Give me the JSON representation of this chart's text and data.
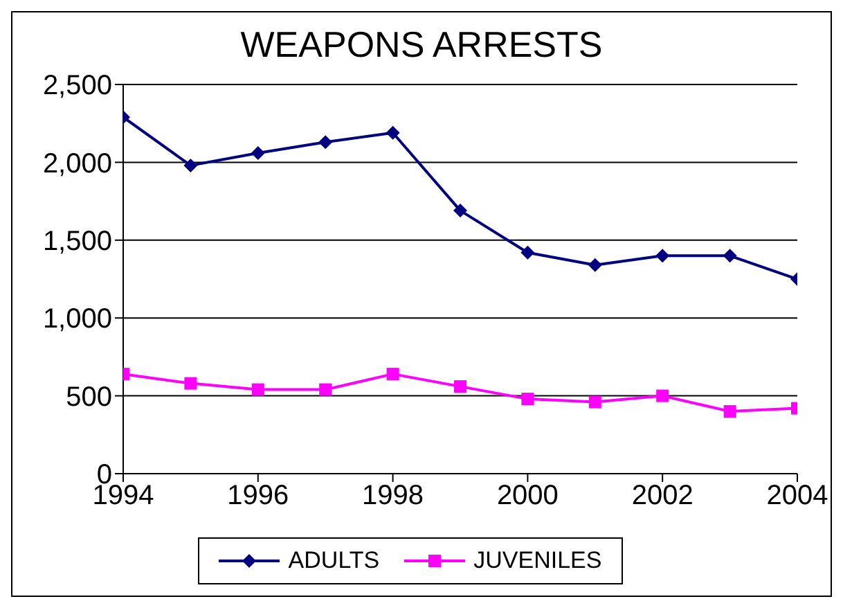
{
  "chart_data": {
    "type": "line",
    "title": "WEAPONS ARRESTS",
    "x": [
      1994,
      1995,
      1996,
      1997,
      1998,
      1999,
      2000,
      2001,
      2002,
      2003,
      2004
    ],
    "series": [
      {
        "name": "ADULTS",
        "color": "#000080",
        "marker": "diamond",
        "values": [
          2290,
          1980,
          2060,
          2130,
          2190,
          1690,
          1420,
          1340,
          1400,
          1400,
          1250
        ]
      },
      {
        "name": "JUVENILES",
        "color": "#ff00ff",
        "marker": "square",
        "values": [
          640,
          580,
          540,
          540,
          640,
          560,
          480,
          460,
          500,
          400,
          420
        ]
      }
    ],
    "xlim": [
      1994,
      2004
    ],
    "xticks": [
      1994,
      1996,
      1998,
      2000,
      2002,
      2004
    ],
    "ylim": [
      0,
      2500
    ],
    "yticks": [
      0,
      500,
      {
        "value": 1000,
        "label": "1,000"
      },
      {
        "value": 1500,
        "label": "1,500"
      },
      {
        "value": 2000,
        "label": "2,000"
      },
      {
        "value": 2500,
        "label": "2,500"
      }
    ],
    "grid": "y",
    "legend": "bottom"
  }
}
